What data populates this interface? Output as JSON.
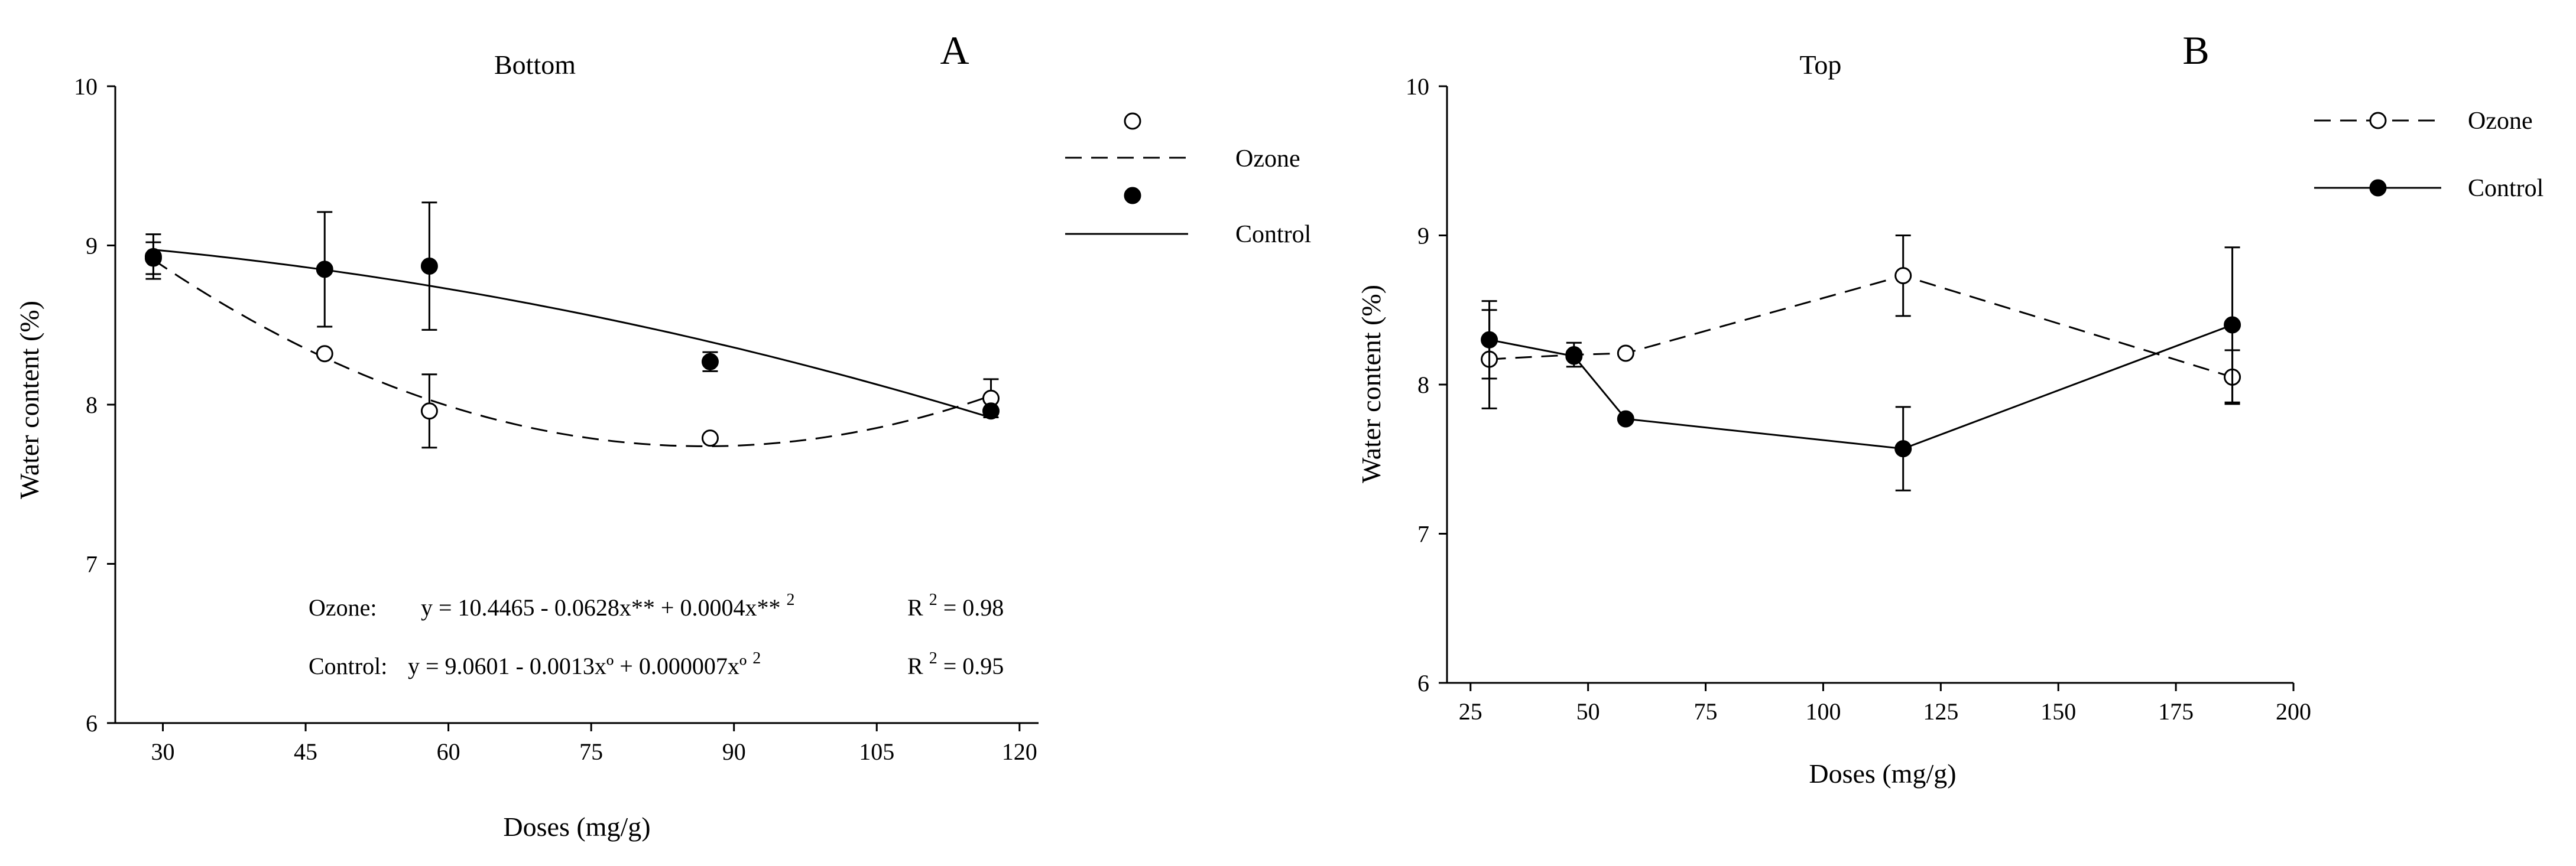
{
  "chart_data": [
    {
      "panel": "A",
      "type": "scatter",
      "title": "Bottom",
      "xlabel": "Doses (mg/g)",
      "ylabel": "Water content (%)",
      "xlim": [
        25,
        122
      ],
      "ylim": [
        6,
        10
      ],
      "xticks": [
        30,
        45,
        60,
        75,
        90,
        105,
        120
      ],
      "yticks": [
        6,
        7,
        8,
        9,
        10
      ],
      "legend": {
        "position": "top-right",
        "entries": [
          "Ozone",
          "Control"
        ]
      },
      "series": [
        {
          "name": "Ozone",
          "marker": "open",
          "fit": "quadratic",
          "points": [
            {
              "x": 29,
              "y": 8.92,
              "err": 0.1
            },
            {
              "x": 47,
              "y": 8.32,
              "err": 0.0
            },
            {
              "x": 58,
              "y": 7.96,
              "err": 0.23
            },
            {
              "x": 87.5,
              "y": 7.79,
              "err": 0.0
            },
            {
              "x": 117,
              "y": 8.04,
              "err": 0.12
            }
          ]
        },
        {
          "name": "Control",
          "marker": "filled",
          "fit": "quadratic",
          "points": [
            {
              "x": 29,
              "y": 8.93,
              "err": 0.14
            },
            {
              "x": 47,
              "y": 8.85,
              "err": 0.36
            },
            {
              "x": 58,
              "y": 8.87,
              "err": 0.4
            },
            {
              "x": 87.5,
              "y": 8.27,
              "err": 0.06
            },
            {
              "x": 117,
              "y": 7.96,
              "err": 0.0
            }
          ]
        }
      ],
      "equations": [
        {
          "label": "Ozone:",
          "expr": "y = 10.4465 - 0.0628x** + 0.0004x**",
          "sup": "2",
          "r2_label": "R",
          "r2_sup": "2",
          "r2_value": "= 0.98"
        },
        {
          "label": "Control:",
          "expr": "y = 9.0601 -  0.0013xº + 0.000007xº",
          "sup": "2",
          "r2_label": "R",
          "r2_sup": "2",
          "r2_value": "= 0.95"
        }
      ]
    },
    {
      "panel": "B",
      "type": "line",
      "title": "Top",
      "xlabel": "Doses (mg/g)",
      "ylabel": "Water content (%)",
      "xlim": [
        20,
        200
      ],
      "ylim": [
        6,
        10
      ],
      "xticks": [
        25,
        50,
        75,
        100,
        125,
        150,
        175,
        200
      ],
      "yticks": [
        6,
        7,
        8,
        9,
        10
      ],
      "legend": {
        "position": "top-right",
        "entries": [
          "Ozone",
          "Control"
        ]
      },
      "series": [
        {
          "name": "Ozone",
          "marker": "open",
          "points": [
            {
              "x": 29,
              "y": 8.17,
              "err": 0.33
            },
            {
              "x": 47,
              "y": 8.2,
              "err": 0.08
            },
            {
              "x": 58,
              "y": 8.21,
              "err": 0.0
            },
            {
              "x": 117,
              "y": 8.73,
              "err": 0.27
            },
            {
              "x": 187,
              "y": 8.05,
              "err": 0.18
            }
          ]
        },
        {
          "name": "Control",
          "marker": "filled",
          "points": [
            {
              "x": 29,
              "y": 8.3,
              "err": 0.26
            },
            {
              "x": 47,
              "y": 8.19,
              "err": 0.0
            },
            {
              "x": 58,
              "y": 7.77,
              "err": 0.0
            },
            {
              "x": 117,
              "y": 7.57,
              "err": 0.28
            },
            {
              "x": 187,
              "y": 8.4,
              "err": 0.52
            }
          ]
        }
      ]
    }
  ]
}
